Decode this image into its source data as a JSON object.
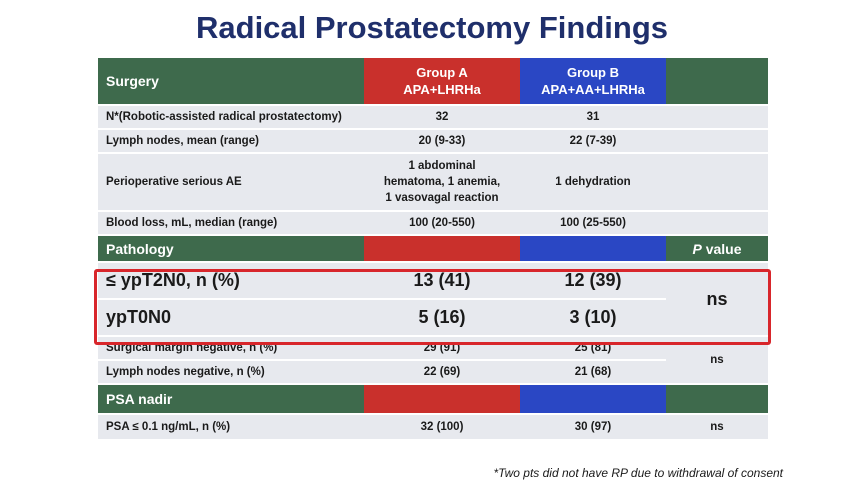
{
  "title": "Radical Prostatectomy Findings",
  "header": {
    "label": "Surgery",
    "group_a_line1": "Group A",
    "group_a_line2": "APA+LHRHa",
    "group_b_line1": "Group B",
    "group_b_line2": "APA+AA+LHRHa"
  },
  "surgery_rows": [
    {
      "label": "N*(Robotic-assisted radical prostatectomy)",
      "a": "32",
      "b": "31"
    },
    {
      "label": "Lymph nodes, mean (range)",
      "a": "20 (9-33)",
      "b": "22 (7-39)"
    },
    {
      "label": "Perioperative serious AE",
      "a_line1": "1 abdominal",
      "a_line2": "hematoma, 1 anemia,",
      "a_line3": "1 vasovagal reaction",
      "b": "1 dehydration"
    },
    {
      "label": "Blood loss, mL, median (range)",
      "a": "100 (20-550)",
      "b": "100 (25-550)"
    }
  ],
  "pathology": {
    "label": "Pathology",
    "pvalue_italic": "P",
    "pvalue_rest": " value",
    "rows": [
      {
        "label": "≤ ypT2N0, n (%)",
        "a": "13 (41)",
        "b": "12 (39)"
      },
      {
        "label": "ypT0N0",
        "a": "5 (16)",
        "b": "3 (10)"
      },
      {
        "label": "Surgical margin negative, n (%)",
        "a": "29 (91)",
        "b": "25 (81)"
      },
      {
        "label": "Lymph nodes negative, n (%)",
        "a": "22 (69)",
        "b": "21 (68)"
      }
    ],
    "ns_highlight": "ns",
    "ns_lower": "ns"
  },
  "psa": {
    "label": "PSA nadir",
    "row": {
      "label": "PSA ≤ 0.1 ng/mL, n (%)",
      "a": "32 (100)",
      "b": "30 (97)",
      "p": "ns"
    }
  },
  "footnote": "*Two pts did not have RP due to withdrawal of consent",
  "colors": {
    "title": "#1f2f6b",
    "section_green": "#3e6a4c",
    "group_a_red": "#c9302c",
    "group_b_blue": "#2a47c4",
    "row_gray": "#e7e9ee",
    "highlight_red": "#d8262b"
  }
}
